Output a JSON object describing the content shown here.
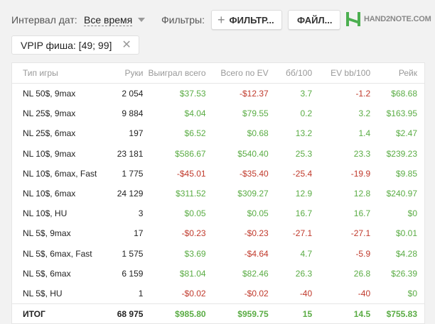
{
  "toolbar": {
    "interval_label": "Интервал дат:",
    "interval_value": "Все время",
    "filters_label": "Фильтры:",
    "filter_button": "ФИЛЬТР...",
    "file_button": "ФАЙЛ...",
    "logo_text": "HAND2NOTE.COM"
  },
  "chip": {
    "label": "VPIP фиша: [49; 99]"
  },
  "colors": {
    "positive": "#5aac44",
    "negative": "#c0392b",
    "logo_green": "#4caf50"
  },
  "table": {
    "headers": [
      "Тип игры",
      "Руки",
      "Выиграл всего",
      "Всего по EV",
      "бб/100",
      "EV bb/100",
      "Рейк"
    ],
    "rows": [
      [
        "NL 50$, 9max",
        "2 054",
        "$37.53",
        "-$12.37",
        "3.7",
        "-1.2",
        "$68.68"
      ],
      [
        "NL 25$, 9max",
        "9 884",
        "$4.04",
        "$79.55",
        "0.2",
        "3.2",
        "$163.95"
      ],
      [
        "NL 25$, 6max",
        "197",
        "$6.52",
        "$0.68",
        "13.2",
        "1.4",
        "$2.47"
      ],
      [
        "NL 10$, 9max",
        "23 181",
        "$586.67",
        "$540.40",
        "25.3",
        "23.3",
        "$239.23"
      ],
      [
        "NL 10$, 6max, Fast",
        "1 775",
        "-$45.01",
        "-$35.40",
        "-25.4",
        "-19.9",
        "$9.85"
      ],
      [
        "NL 10$, 6max",
        "24 129",
        "$311.52",
        "$309.27",
        "12.9",
        "12.8",
        "$240.97"
      ],
      [
        "NL 10$, HU",
        "3",
        "$0.05",
        "$0.05",
        "16.7",
        "16.7",
        "$0"
      ],
      [
        "NL 5$, 9max",
        "17",
        "-$0.23",
        "-$0.23",
        "-27.1",
        "-27.1",
        "$0.01"
      ],
      [
        "NL 5$, 6max, Fast",
        "1 575",
        "$3.69",
        "-$4.64",
        "4.7",
        "-5.9",
        "$4.28"
      ],
      [
        "NL 5$, 6max",
        "6 159",
        "$81.04",
        "$82.46",
        "26.3",
        "26.8",
        "$26.39"
      ],
      [
        "NL 5$, HU",
        "1",
        "-$0.02",
        "-$0.02",
        "-40",
        "-40",
        "$0"
      ]
    ],
    "total": [
      "ИТОГ",
      "68 975",
      "$985.80",
      "$959.75",
      "15",
      "14.5",
      "$755.83"
    ]
  }
}
